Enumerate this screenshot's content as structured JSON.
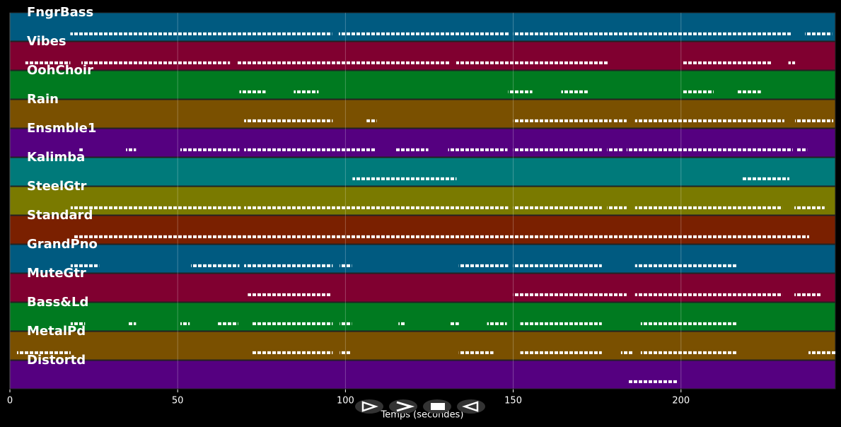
{
  "chart_data": {
    "type": "pianoroll",
    "xlabel": "Temps (secondes)",
    "xlim": [
      0,
      246
    ],
    "xticks": [
      0,
      50,
      100,
      150,
      200
    ],
    "grid": true,
    "tracks": [
      {
        "name": "FngrBass",
        "color": "#005a80",
        "segments": [
          [
            18,
            96
          ],
          [
            98,
            149
          ],
          [
            150,
            233
          ],
          [
            237,
            245
          ]
        ]
      },
      {
        "name": "Vibes",
        "color": "#800030",
        "segments": [
          [
            4.6,
            18
          ],
          [
            21.3,
            65.6
          ],
          [
            67.7,
            131
          ],
          [
            133,
            178.5
          ],
          [
            200.6,
            227
          ],
          [
            232,
            234
          ]
        ]
      },
      {
        "name": "OohChoir",
        "color": "#007a20",
        "segments": [
          [
            68.4,
            76.2
          ],
          [
            84.6,
            92
          ],
          [
            148.5,
            155.7
          ],
          [
            164.3,
            172.2
          ],
          [
            200.6,
            209.7
          ],
          [
            216.5,
            223.8
          ]
        ]
      },
      {
        "name": "Rain",
        "color": "#7a5000",
        "segments": [
          [
            69.8,
            96.2
          ],
          [
            106.3,
            109.3
          ],
          [
            150,
            179.3
          ],
          [
            180,
            183.8
          ],
          [
            186.3,
            230.8
          ],
          [
            234,
            245.4
          ]
        ]
      },
      {
        "name": "Ensmble1",
        "color": "#550080",
        "segments": [
          [
            20.7,
            21.7
          ],
          [
            34.6,
            37.6
          ],
          [
            50.8,
            68.4
          ],
          [
            69.8,
            108.9
          ],
          [
            114.8,
            124.7
          ],
          [
            130.6,
            148.3
          ],
          [
            150,
            176.4
          ],
          [
            178,
            182.7
          ],
          [
            183.8,
            233.3
          ],
          [
            234.4,
            237.6
          ]
        ]
      },
      {
        "name": "Kalimba",
        "color": "#007a7a",
        "segments": [
          [
            102.1,
            133.1
          ],
          [
            218.1,
            232.3
          ]
        ]
      },
      {
        "name": "SteelGtr",
        "color": "#7a7a00",
        "segments": [
          [
            18.1,
            68.8
          ],
          [
            69.8,
            148.5
          ],
          [
            150,
            176.4
          ],
          [
            178,
            183.8
          ],
          [
            186.3,
            230.2
          ],
          [
            233.8,
            242.8
          ]
        ]
      },
      {
        "name": "Standard",
        "color": "#7a2000",
        "segments": [
          [
            18.8,
            238.2
          ]
        ]
      },
      {
        "name": "GrandPno",
        "color": "#005a80",
        "segments": [
          [
            18.1,
            26.6
          ],
          [
            54,
            68.4
          ],
          [
            69.8,
            96.2
          ],
          [
            98.3,
            101.9
          ],
          [
            133.8,
            148.5
          ],
          [
            150,
            176.4
          ],
          [
            186.3,
            216.5
          ]
        ]
      },
      {
        "name": "MuteGtr",
        "color": "#800030",
        "segments": [
          [
            70.9,
            95.8
          ],
          [
            150,
            183.8
          ],
          [
            186.3,
            230.2
          ],
          [
            233.8,
            241.8
          ]
        ]
      },
      {
        "name": "Bass&Ld",
        "color": "#007a20",
        "segments": [
          [
            18.1,
            22.4
          ],
          [
            35.4,
            37.6
          ],
          [
            50.8,
            53.6
          ],
          [
            62,
            68
          ],
          [
            72,
            96.2
          ],
          [
            98.3,
            101.9
          ],
          [
            115.8,
            117.9
          ],
          [
            131,
            133.8
          ],
          [
            142.2,
            148.1
          ],
          [
            152.1,
            176.4
          ],
          [
            188,
            216.5
          ]
        ]
      },
      {
        "name": "MetalPd",
        "color": "#7a5000",
        "segments": [
          [
            2.1,
            18.1
          ],
          [
            72,
            96.2
          ],
          [
            98.3,
            101.5
          ],
          [
            133.8,
            144.1
          ],
          [
            152.1,
            176.4
          ],
          [
            182.1,
            185.9
          ],
          [
            188,
            216.5
          ],
          [
            238,
            246
          ]
        ]
      },
      {
        "name": "Distortd",
        "color": "#550080",
        "segments": [
          [
            184.4,
            199.2
          ]
        ]
      }
    ]
  }
}
